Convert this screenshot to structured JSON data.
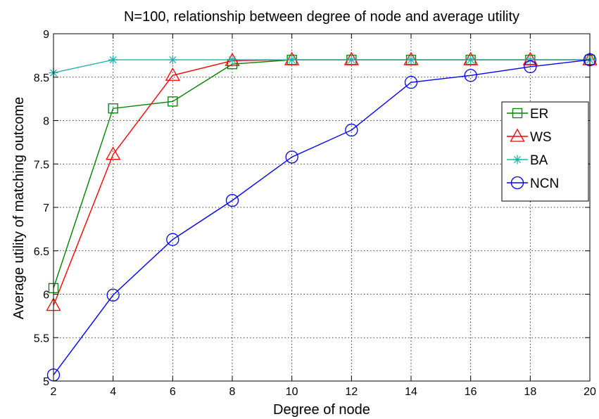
{
  "chart_data": {
    "type": "line",
    "title": "N=100, relationship between degree of node and average utility",
    "xlabel": "Degree of node",
    "ylabel": "Average utility of matching outcome",
    "xlim": [
      2,
      20
    ],
    "ylim": [
      5,
      9
    ],
    "xticks": [
      2,
      4,
      6,
      8,
      10,
      12,
      14,
      16,
      18,
      20
    ],
    "yticks": [
      5,
      5.5,
      6,
      6.5,
      7,
      7.5,
      8,
      8.5,
      9
    ],
    "ytick_labels": [
      "5",
      "5.5",
      "6",
      "6.5",
      "7",
      "7.5",
      "8",
      "8.5",
      "9"
    ],
    "grid": true,
    "legend_position": "right",
    "x": [
      2,
      4,
      6,
      8,
      10,
      12,
      14,
      16,
      18,
      20
    ],
    "series": [
      {
        "name": "ER",
        "color": "#008000",
        "marker": "square",
        "values": [
          6.07,
          8.14,
          8.22,
          8.65,
          8.7,
          8.7,
          8.7,
          8.7,
          8.7,
          8.7
        ]
      },
      {
        "name": "WS",
        "color": "#ff0000",
        "marker": "triangle",
        "values": [
          5.87,
          7.61,
          8.52,
          8.69,
          8.7,
          8.7,
          8.7,
          8.7,
          8.7,
          8.7
        ]
      },
      {
        "name": "BA",
        "color": "#20b2aa",
        "marker": "asterisk",
        "values": [
          8.55,
          8.7,
          8.7,
          8.7,
          8.7,
          8.7,
          8.7,
          8.7,
          8.7,
          8.7
        ]
      },
      {
        "name": "NCN",
        "color": "#0000ff",
        "marker": "circle",
        "values": [
          5.07,
          5.99,
          6.63,
          7.08,
          7.58,
          7.89,
          8.44,
          8.52,
          8.62,
          8.7
        ]
      }
    ]
  }
}
